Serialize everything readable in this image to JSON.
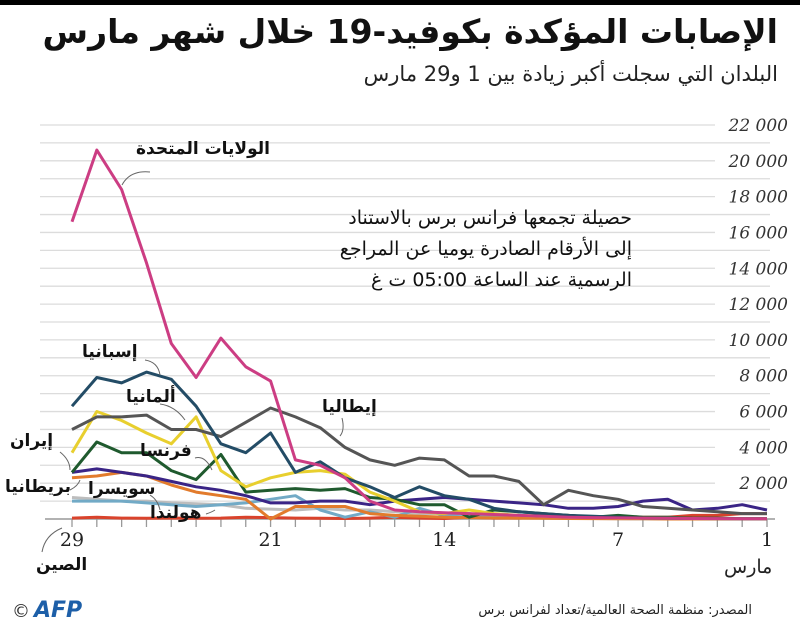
{
  "header": {
    "title": "الإصابات المؤكدة بكوفيد-19 خلال شهر مارس",
    "subtitle": "البلدان التي سجلت أكبر زيادة بين 1 و29 مارس"
  },
  "note": {
    "lines": [
      "حصيلة تجمعها فرانس برس بالاستناد",
      "إلى الأرقام الصادرة يوميا عن المراجع",
      "الرسمية عند الساعة 05:00 ت غ"
    ]
  },
  "footer": {
    "source": "المصدر: منظمة الصحة العالمية/تعداد لفرانس برس",
    "logo": "AFP",
    "copyright": "©"
  },
  "chart_data": {
    "type": "line",
    "title": "الإصابات المؤكدة بكوفيد-19 خلال شهر مارس",
    "subtitle": "البلدان التي سجلت أكبر زيادة بين 1 و29 مارس",
    "x_unit": "مارس",
    "x": [
      29,
      28,
      27,
      26,
      25,
      24,
      23,
      22,
      21,
      20,
      19,
      18,
      17,
      16,
      15,
      14,
      13,
      12,
      11,
      10,
      9,
      8,
      7,
      6,
      5,
      4,
      3,
      2,
      1
    ],
    "x_direction": "reversed (1 at right, 29 at left)",
    "x_tick_labels": [
      "29",
      "21",
      "14",
      "7",
      "1"
    ],
    "ylim": [
      0,
      22000
    ],
    "y_ticks": [
      2000,
      4000,
      6000,
      8000,
      10000,
      12000,
      14000,
      16000,
      18000,
      20000,
      22000
    ],
    "y_tick_labels": [
      "2 000",
      "4 000",
      "6 000",
      "8 000",
      "10 000",
      "12 000",
      "14 000",
      "16 000",
      "18 000",
      "20 000",
      "22 000"
    ],
    "y_axis_side": "right",
    "grid": true,
    "series": [
      {
        "name": "الولايات المتحدة",
        "color": "#cc3d83",
        "values": [
          16600,
          20600,
          18400,
          14300,
          9800,
          7900,
          10100,
          8500,
          7700,
          3300,
          3000,
          2300,
          1000,
          500,
          400,
          350,
          300,
          250,
          200,
          150,
          100,
          80,
          60,
          50,
          40,
          30,
          20,
          10,
          10
        ]
      },
      {
        "name": "إسبانيا",
        "color": "#234c66",
        "values": [
          6300,
          7900,
          7600,
          8200,
          7800,
          6300,
          4200,
          3700,
          4800,
          2600,
          3200,
          2300,
          1800,
          1200,
          1800,
          1300,
          1100,
          600,
          400,
          300,
          200,
          150,
          100,
          50,
          40,
          30,
          20,
          10,
          10
        ]
      },
      {
        "name": "إيطاليا",
        "color": "#555555",
        "values": [
          5000,
          5700,
          5700,
          5800,
          5000,
          5000,
          4600,
          5400,
          6200,
          5700,
          5100,
          4000,
          3300,
          3000,
          3400,
          3300,
          2400,
          2400,
          2100,
          800,
          1600,
          1300,
          1100,
          700,
          600,
          500,
          400,
          300,
          300
        ]
      },
      {
        "name": "ألمانيا",
        "color": "#e8cf2e",
        "values": [
          3700,
          6000,
          5500,
          4800,
          4200,
          5700,
          2700,
          1800,
          2300,
          2600,
          2700,
          2500,
          1500,
          1000,
          400,
          300,
          500,
          300,
          200,
          150,
          100,
          100,
          50,
          50,
          40,
          30,
          20,
          10,
          10
        ]
      },
      {
        "name": "فرنسا",
        "color": "#1f5a2e",
        "values": [
          2600,
          4300,
          3700,
          3700,
          2700,
          2200,
          3600,
          1500,
          1600,
          1700,
          1600,
          1700,
          1200,
          1100,
          800,
          800,
          100,
          500,
          400,
          300,
          200,
          100,
          200,
          100,
          100,
          50,
          50,
          20,
          20
        ]
      },
      {
        "name": "إيران",
        "color": "#3a2486",
        "values": [
          2600,
          2800,
          2600,
          2400,
          2100,
          1800,
          1600,
          1300,
          900,
          900,
          1000,
          1000,
          800,
          1000,
          1100,
          1200,
          1100,
          1000,
          900,
          800,
          600,
          600,
          700,
          1000,
          1100,
          500,
          600,
          800,
          500
        ]
      },
      {
        "name": "بريطانيا",
        "color": "#e27b2c",
        "values": [
          2300,
          2400,
          2600,
          2400,
          1900,
          1500,
          1300,
          1100,
          0,
          700,
          700,
          700,
          300,
          200,
          150,
          100,
          80,
          60,
          50,
          40,
          30,
          20,
          10,
          10,
          0,
          0,
          0,
          0,
          0
        ]
      },
      {
        "name": "سويسرا",
        "color": "#72aac6",
        "values": [
          1000,
          1000,
          1000,
          900,
          800,
          700,
          800,
          900,
          1100,
          1300,
          500,
          100,
          400,
          100,
          600,
          200,
          300,
          100,
          100,
          50,
          50,
          30,
          20,
          10,
          10,
          0,
          0,
          0,
          0
        ]
      },
      {
        "name": "هولندا",
        "color": "#bdbdbd",
        "values": [
          1200,
          1100,
          1000,
          1000,
          900,
          850,
          800,
          600,
          550,
          500,
          600,
          500,
          500,
          400,
          300,
          300,
          200,
          200,
          150,
          100,
          100,
          50,
          40,
          30,
          20,
          10,
          0,
          0,
          0
        ]
      },
      {
        "name": "الصين",
        "color": "#d9432c",
        "values": [
          50,
          100,
          50,
          40,
          50,
          40,
          50,
          100,
          80,
          50,
          40,
          30,
          50,
          100,
          50,
          30,
          100,
          50,
          50,
          100,
          200,
          100,
          150,
          100,
          100,
          200,
          200,
          300,
          300
        ]
      }
    ]
  }
}
